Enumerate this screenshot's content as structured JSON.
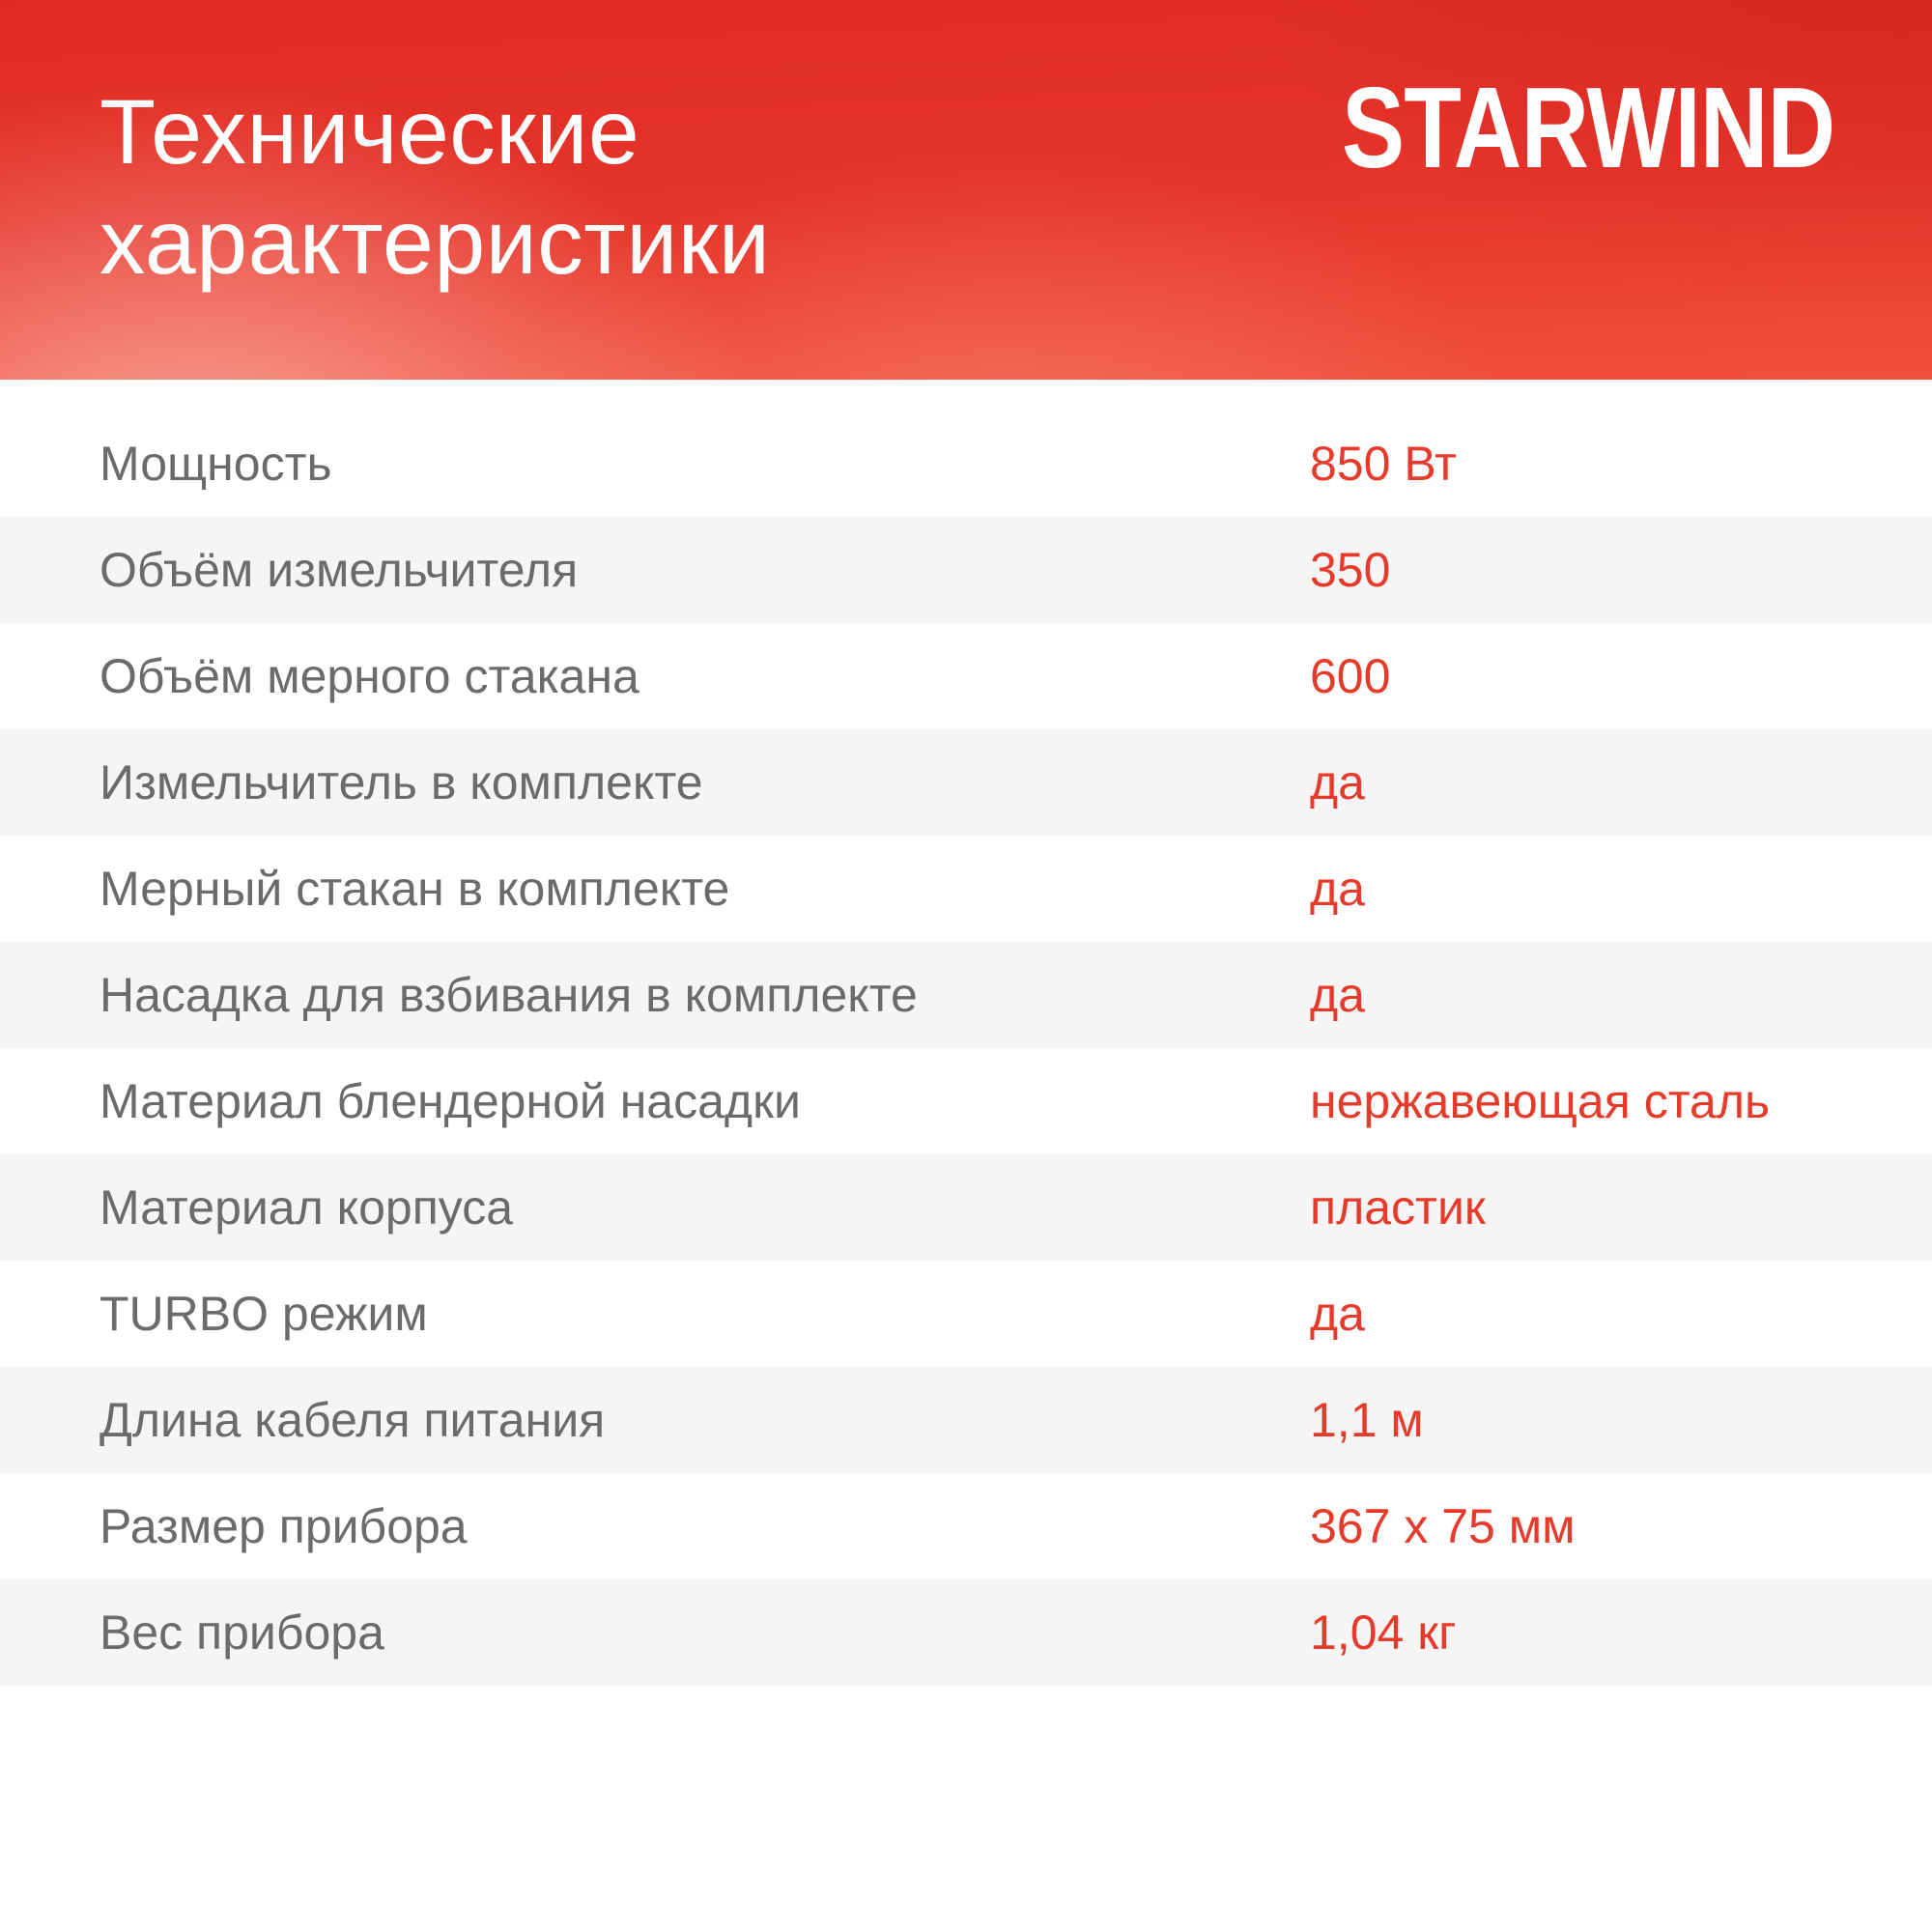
{
  "header": {
    "title": "Технические характеристики",
    "brand": "STARWIND",
    "bg_gradient_top": "#e02b23",
    "bg_gradient_bottom": "#f1503b",
    "text_color": "#ffffff"
  },
  "specs": {
    "rows": [
      {
        "label": "Мощность",
        "value": "850 Вт"
      },
      {
        "label": "Объём измельчителя",
        "value": "350"
      },
      {
        "label": "Объём мерного стакана",
        "value": "600"
      },
      {
        "label": "Измельчитель в комплекте",
        "value": "да"
      },
      {
        "label": "Мерный стакан в комплекте",
        "value": "да"
      },
      {
        "label": "Насадка для взбивания в комплекте",
        "value": "да"
      },
      {
        "label": "Материал блендерной насадки",
        "value": "нержавеющая сталь"
      },
      {
        "label": "Материал корпуса",
        "value": "пластик"
      },
      {
        "label": "TURBO режим",
        "value": "да"
      },
      {
        "label": "Длина кабеля питания",
        "value": "1,1 м"
      },
      {
        "label": "Размер прибора",
        "value": "367 x 75 мм"
      },
      {
        "label": "Вес прибора",
        "value": "1,04 кг"
      }
    ]
  },
  "colors": {
    "value_red": "#e63a2b",
    "label_gray": "#6b6b6b",
    "row_alt_bg": "#f5f5f5",
    "page_bg": "#ffffff"
  }
}
